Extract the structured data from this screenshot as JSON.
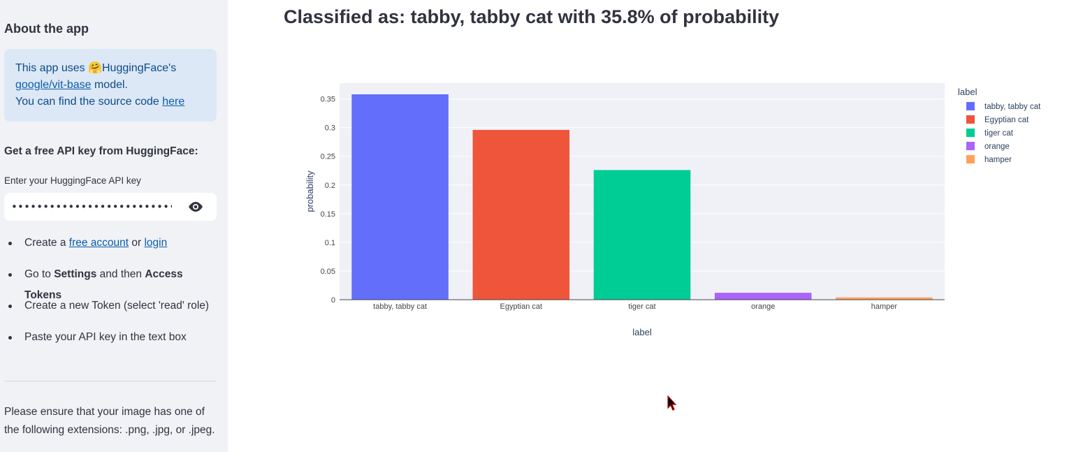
{
  "sidebar": {
    "title": "About the app",
    "info": {
      "line1_prefix": "This app uses ",
      "emoji": "🤗",
      "line1_suffix": "HuggingFace's",
      "model_link": "google/vit-base",
      "line2_suffix": " model.",
      "line3_prefix": "You can find the source code ",
      "source_link": "here"
    },
    "api_title": "Get a free API key from HuggingFace:",
    "api_label": "Enter your HuggingFace API key",
    "api_value": "••••••••••••••••••••••••••••••••••••••",
    "steps": {
      "s1_prefix": "Create a ",
      "s1_link1": "free account",
      "s1_mid": " or ",
      "s1_link2": "login",
      "s2_prefix": "Go to ",
      "s2_bold1": "Settings",
      "s2_mid": " and then ",
      "s2_bold2": "Access Tokens",
      "s3": "Create a new Token (select 'read' role)",
      "s4": "Paste your API key in the text box"
    },
    "note": "Please ensure that your image has one of the following extensions: .png, .jpg, or .jpeg."
  },
  "main": {
    "title": "Classified as: tabby, tabby cat with 35.8% of probability"
  },
  "chart_data": {
    "type": "bar",
    "categories": [
      "tabby, tabby cat",
      "Egyptian cat",
      "tiger cat",
      "orange",
      "hamper"
    ],
    "values": [
      0.358,
      0.296,
      0.226,
      0.012,
      0.004
    ],
    "colors": [
      "#636efa",
      "#ef553b",
      "#00cc96",
      "#ab63fa",
      "#ffa15a"
    ],
    "xlabel": "label",
    "ylabel": "probability",
    "ylim": [
      0,
      0.3775
    ],
    "yticks": [
      0,
      0.05,
      0.1,
      0.15,
      0.2,
      0.25,
      0.3,
      0.35
    ],
    "ytick_labels": [
      "0",
      "0.05",
      "0.1",
      "0.15",
      "0.2",
      "0.25",
      "0.3",
      "0.35"
    ],
    "legend_title": "label",
    "legend_position": "top-right",
    "plot_bg": "#e5ecf6",
    "grid": true
  },
  "icons": {
    "password_toggle": "eye-icon",
    "cursor": "mouse-pointer-icon"
  }
}
